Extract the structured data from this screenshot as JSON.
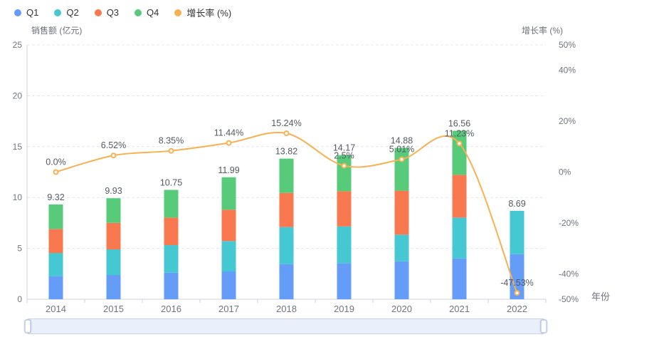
{
  "chart_data": {
    "type": "bar",
    "subtype": "stacked-bar-with-line-combo",
    "title": "",
    "categories": [
      "2014",
      "2015",
      "2016",
      "2017",
      "2018",
      "2019",
      "2020",
      "2021",
      "2022"
    ],
    "bar_series": [
      {
        "name": "Q1",
        "color": "#659CF8",
        "values": [
          2.29,
          2.38,
          2.61,
          2.73,
          3.45,
          3.55,
          3.73,
          4.01,
          4.43
        ]
      },
      {
        "name": "Q2",
        "color": "#45C8D1",
        "values": [
          2.26,
          2.52,
          2.71,
          2.99,
          3.64,
          3.61,
          2.62,
          4.02,
          4.26
        ]
      },
      {
        "name": "Q3",
        "color": "#F87950",
        "values": [
          2.36,
          2.61,
          2.71,
          3.08,
          3.36,
          3.46,
          4.32,
          4.2,
          0
        ]
      },
      {
        "name": "Q4",
        "color": "#57CB79",
        "values": [
          2.41,
          2.42,
          2.72,
          3.19,
          3.37,
          3.55,
          4.21,
          4.33,
          0
        ]
      }
    ],
    "bar_totals": [
      9.32,
      9.93,
      10.75,
      11.99,
      13.82,
      14.17,
      14.88,
      16.56,
      8.69
    ],
    "bar_total_labels": [
      "9.32",
      "9.93",
      "10.75",
      "11.99",
      "13.82",
      "14.17",
      "14.88",
      "16.56",
      "8.69"
    ],
    "line_series": {
      "name": "增长率 (%)",
      "color": "#F9B050",
      "values": [
        0.0,
        6.52,
        8.35,
        11.44,
        15.24,
        2.5,
        5.01,
        11.23,
        -47.53
      ],
      "labels": [
        "0.0%",
        "6.52%",
        "8.35%",
        "11.44%",
        "15.24%",
        "2.5%",
        "5.01%",
        "11.23%",
        "-47.53%"
      ],
      "smooth": true,
      "marker": "hollow-circle"
    },
    "y_left": {
      "name": "销售额 (亿元)",
      "min": 0,
      "max": 25,
      "interval": 5,
      "tick_labels": [
        "0",
        "5",
        "10",
        "15",
        "20",
        "25"
      ]
    },
    "y_right": {
      "name": "增长率 (%)",
      "min": -50,
      "max": 50,
      "tick_values": [
        50,
        40,
        20,
        0,
        -20,
        -40,
        -50
      ],
      "tick_labels": [
        "50%",
        "40%",
        "20%",
        "0%",
        "-20%",
        "-40%",
        "-50%"
      ]
    },
    "x_axis": {
      "name": "年份"
    },
    "legend": [
      {
        "label": "Q1",
        "color": "#659CF8"
      },
      {
        "label": "Q2",
        "color": "#45C8D1"
      },
      {
        "label": "Q3",
        "color": "#F87950"
      },
      {
        "label": "Q4",
        "color": "#57CB79"
      },
      {
        "label": "增长率 (%)",
        "color": "#F9B050"
      }
    ],
    "legend_position": "top-left",
    "grid": "horizontal dashed lines at left-axis ticks",
    "colors": {
      "background": "#FFFFFF",
      "grid_line": "#E2E8F3",
      "axis_line": "#CCD2DC",
      "axis_label": "#70757E",
      "axis_name": "#6E7079",
      "value_label": "#555A61",
      "legend_text": "#333333",
      "slider_fill": "#E9EFFB",
      "slider_border": "#C6D3EC",
      "slider_handle_border": "#A3B5DC"
    },
    "datazoom_slider": {
      "present": true,
      "range": "full"
    }
  }
}
